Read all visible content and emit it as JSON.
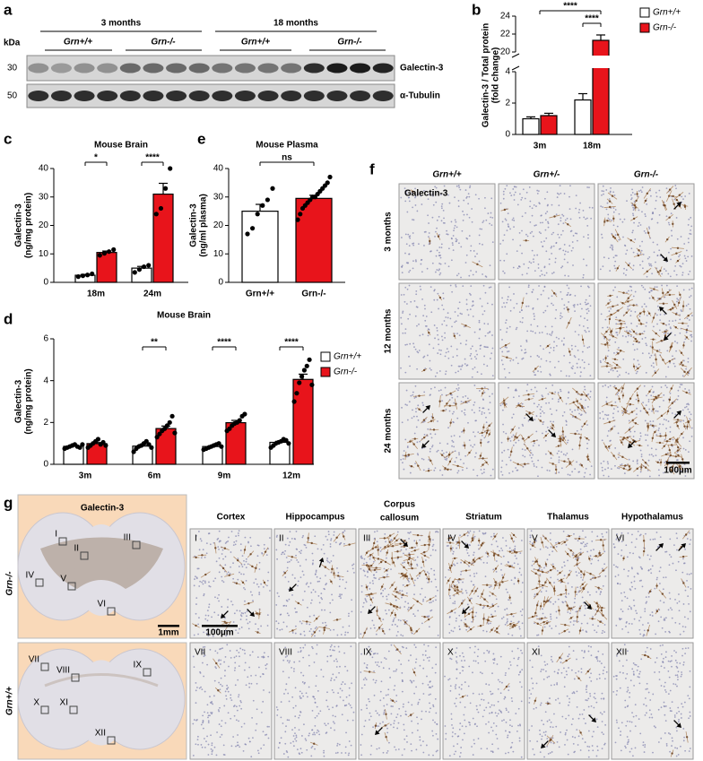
{
  "panel_labels": [
    "a",
    "b",
    "c",
    "d",
    "e",
    "f",
    "g"
  ],
  "blot": {
    "kda": "kDa",
    "groups": [
      "3 months",
      "18 months"
    ],
    "genotypes": [
      "Grn+/+",
      "Grn-/-",
      "Grn+/+",
      "Grn-/-"
    ],
    "markers": [
      "30",
      "50"
    ],
    "proteins": [
      "Galectin-3",
      "α-Tubulin"
    ]
  },
  "chart_data": [
    {
      "type": "bar",
      "y_label": [
        "Galectin-3 / Total protein",
        "(fold change)"
      ],
      "categories": [
        "3m",
        "18m"
      ],
      "series": [
        {
          "name": "Grn+/+",
          "color": "#ffffff",
          "values": [
            1.0,
            2.2
          ],
          "errors": [
            0.12,
            0.4
          ]
        },
        {
          "name": "Grn-/-",
          "color": "#e8141b",
          "values": [
            1.2,
            21.3
          ],
          "errors": [
            0.15,
            0.6
          ]
        }
      ],
      "ylim": [
        0,
        24
      ],
      "ybreak": [
        4,
        20
      ],
      "yticks": [
        0,
        2,
        4,
        20,
        22,
        24
      ],
      "annotations": [
        "****",
        "****"
      ],
      "legend": "right"
    },
    {
      "type": "bar",
      "title": "Mouse Brain",
      "y_label": [
        "Galectin-3",
        "(ng/mg protein)"
      ],
      "categories": [
        "18m",
        "24m"
      ],
      "series": [
        {
          "name": "Grn+/+",
          "color": "#ffffff",
          "values": [
            2.5,
            5.0
          ],
          "errors": [
            0.3,
            0.6
          ],
          "points": [
            [
              2.0,
              2.3,
              2.6,
              3.0
            ],
            [
              3.5,
              4.5,
              5.5,
              6.0
            ]
          ]
        },
        {
          "name": "Grn-/-",
          "color": "#e8141b",
          "values": [
            10.5,
            31.0
          ],
          "errors": [
            0.5,
            3.8
          ],
          "points": [
            [
              9.5,
              10.2,
              10.8,
              11.5
            ],
            [
              24,
              26,
              33,
              40
            ]
          ]
        }
      ],
      "ylim": [
        0,
        40
      ],
      "yticks": [
        0,
        10,
        20,
        30,
        40
      ],
      "annotations": [
        "*",
        "****"
      ]
    },
    {
      "type": "bar",
      "title": "Mouse Brain",
      "y_label": [
        "Galectin-3",
        "(ng/mg protein)"
      ],
      "categories": [
        "3m",
        "6m",
        "9m",
        "12m"
      ],
      "series": [
        {
          "name": "Grn+/+",
          "color": "#ffffff",
          "values": [
            0.86,
            0.87,
            0.85,
            1.05
          ],
          "errors": [
            0.04,
            0.07,
            0.04,
            0.05
          ],
          "points": [
            [
              0.75,
              0.8,
              0.85,
              0.9,
              0.95,
              0.85,
              0.8,
              0.95
            ],
            [
              0.6,
              0.75,
              0.85,
              0.9,
              1.0,
              1.1,
              0.95,
              0.8
            ],
            [
              0.7,
              0.75,
              0.8,
              0.85,
              0.9,
              0.95,
              1.0,
              0.85
            ],
            [
              0.8,
              0.9,
              1.0,
              1.05,
              1.1,
              1.2,
              1.15,
              1.0
            ]
          ]
        },
        {
          "name": "Grn-/-",
          "color": "#e8141b",
          "values": [
            0.99,
            1.71,
            1.99,
            4.06
          ],
          "errors": [
            0.05,
            0.12,
            0.11,
            0.25
          ],
          "points": [
            [
              0.8,
              0.9,
              1.0,
              1.1,
              1.2,
              0.95,
              1.05,
              0.9
            ],
            [
              1.3,
              1.45,
              1.6,
              1.7,
              1.85,
              2.0,
              2.3,
              1.5
            ],
            [
              1.6,
              1.7,
              1.85,
              1.95,
              2.0,
              2.1,
              2.3,
              2.4
            ],
            [
              3.0,
              3.4,
              3.9,
              4.2,
              4.5,
              4.7,
              5.0,
              3.8
            ]
          ]
        }
      ],
      "ylim": [
        0,
        6
      ],
      "yticks": [
        0,
        2,
        4,
        6
      ],
      "annotations": [
        "**",
        "****",
        "****"
      ],
      "legend": "right"
    },
    {
      "type": "bar",
      "title": "Mouse Plasma",
      "y_label": [
        "Galectin-3",
        "(ng/ml plasma)"
      ],
      "categories": [
        "Grn+/+",
        "Grn-/-"
      ],
      "values": [
        25.0,
        29.5
      ],
      "colors": [
        "#ffffff",
        "#e8141b"
      ],
      "errors": [
        2.4,
        1.1
      ],
      "points": [
        [
          17,
          19,
          24,
          27,
          29,
          33
        ],
        [
          22,
          24,
          26,
          27,
          28,
          29,
          30,
          30,
          31,
          32,
          33,
          34,
          35,
          37
        ]
      ],
      "ylim": [
        0,
        40
      ],
      "yticks": [
        0,
        10,
        20,
        30,
        40
      ],
      "annotations": [
        "ns"
      ]
    }
  ],
  "panel_f": {
    "columns": [
      "Grn+/+",
      "Grn+/-",
      "Grn-/-"
    ],
    "rows": [
      "3 months",
      "12 months",
      "24 months"
    ],
    "stain": "Galectin-3",
    "scale_bar": "100µm"
  },
  "panel_g": {
    "stain": "Galectin-3",
    "regions": [
      [
        "Cortex"
      ],
      [
        "Hippocampus"
      ],
      [
        "Corpus",
        "callosum"
      ],
      [
        "Striatum"
      ],
      [
        "Thalamus"
      ],
      [
        "Hypothalamus"
      ]
    ],
    "rows": [
      "Grn-/-",
      "Grn+/+"
    ],
    "numerals": [
      "I",
      "II",
      "III",
      "IV",
      "V",
      "VI",
      "VII",
      "VIII",
      "IX",
      "X",
      "XI",
      "XII"
    ],
    "scale_bars": [
      "1mm",
      "100µm"
    ]
  }
}
